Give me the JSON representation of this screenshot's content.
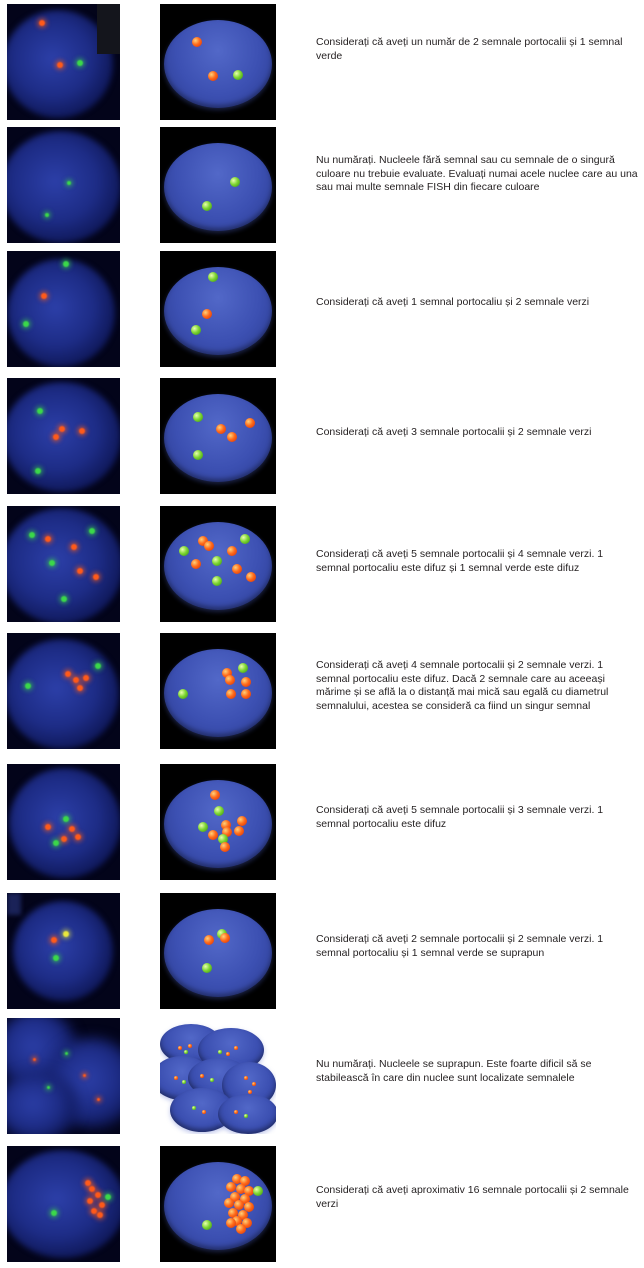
{
  "rows": [
    {
      "caption": "Considerați că aveți un număr de 2 semnale portocalii și 1 semnal verde"
    },
    {
      "caption": "Nu numărați. Nucleele fără semnal sau cu semnale de o singură culoare nu trebuie evaluate. Evaluați numai acele nuclee care au una sau mai multe semnale FISH din fiecare culoare"
    },
    {
      "caption": "Considerați că aveți 1 semnal portocaliu și 2 semnale verzi"
    },
    {
      "caption": "Considerați că aveți 3 semnale portocalii și 2 semnale verzi"
    },
    {
      "caption": "Considerați că aveți 5 semnale portocalii și 4 semnale verzi. 1 semnal portocaliu este difuz și 1 semnal verde este difuz"
    },
    {
      "caption": "Considerați că aveți 4 semnale portocalii și 2 semnale verzi. 1 semnal portocaliu este difuz. Dacă 2 semnale care au aceeași mărime și se află la o distanță mai mică sau egală cu diametrul semnalului, acestea se consideră ca fiind un singur semnal"
    },
    {
      "caption": "Considerați că aveți 5 semnale portocalii și 3 semnale verzi. 1 semnal portocaliu este difuz"
    },
    {
      "caption": "Considerați că aveți 2 semnale portocalii și 2 semnale verzi. 1 semnal portocaliu și 1 semnal verde se suprapun"
    },
    {
      "caption": "Nu numărați. Nucleele se suprapun. Este foarte dificil să se stabilească în care din nuclee sunt localizate semnalele"
    },
    {
      "caption": "Considerați că aveți aproximativ 16 semnale portocalii și 2 semnale verzi"
    }
  ],
  "colors": {
    "orange_signal": "#ff6a1a",
    "green_signal": "#7ed632",
    "nucleus_blue": "#3c50b2",
    "background": "#000000"
  }
}
